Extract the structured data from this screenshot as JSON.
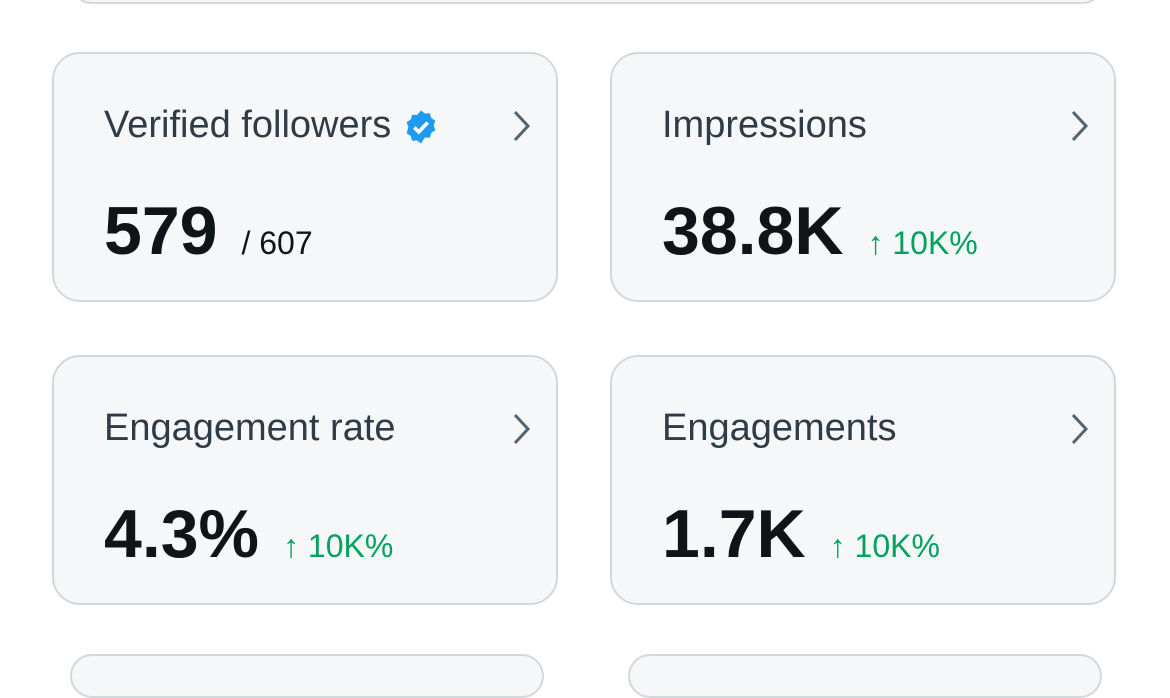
{
  "cards": [
    {
      "label": "Verified followers",
      "value": "579",
      "sub": "/ 607"
    },
    {
      "label": "Impressions",
      "value": "38.8K",
      "delta": "↑ 10K%"
    },
    {
      "label": "Engagement rate",
      "value": "4.3%",
      "delta": "↑ 10K%"
    },
    {
      "label": "Engagements",
      "value": "1.7K",
      "delta": "↑ 10K%"
    }
  ]
}
